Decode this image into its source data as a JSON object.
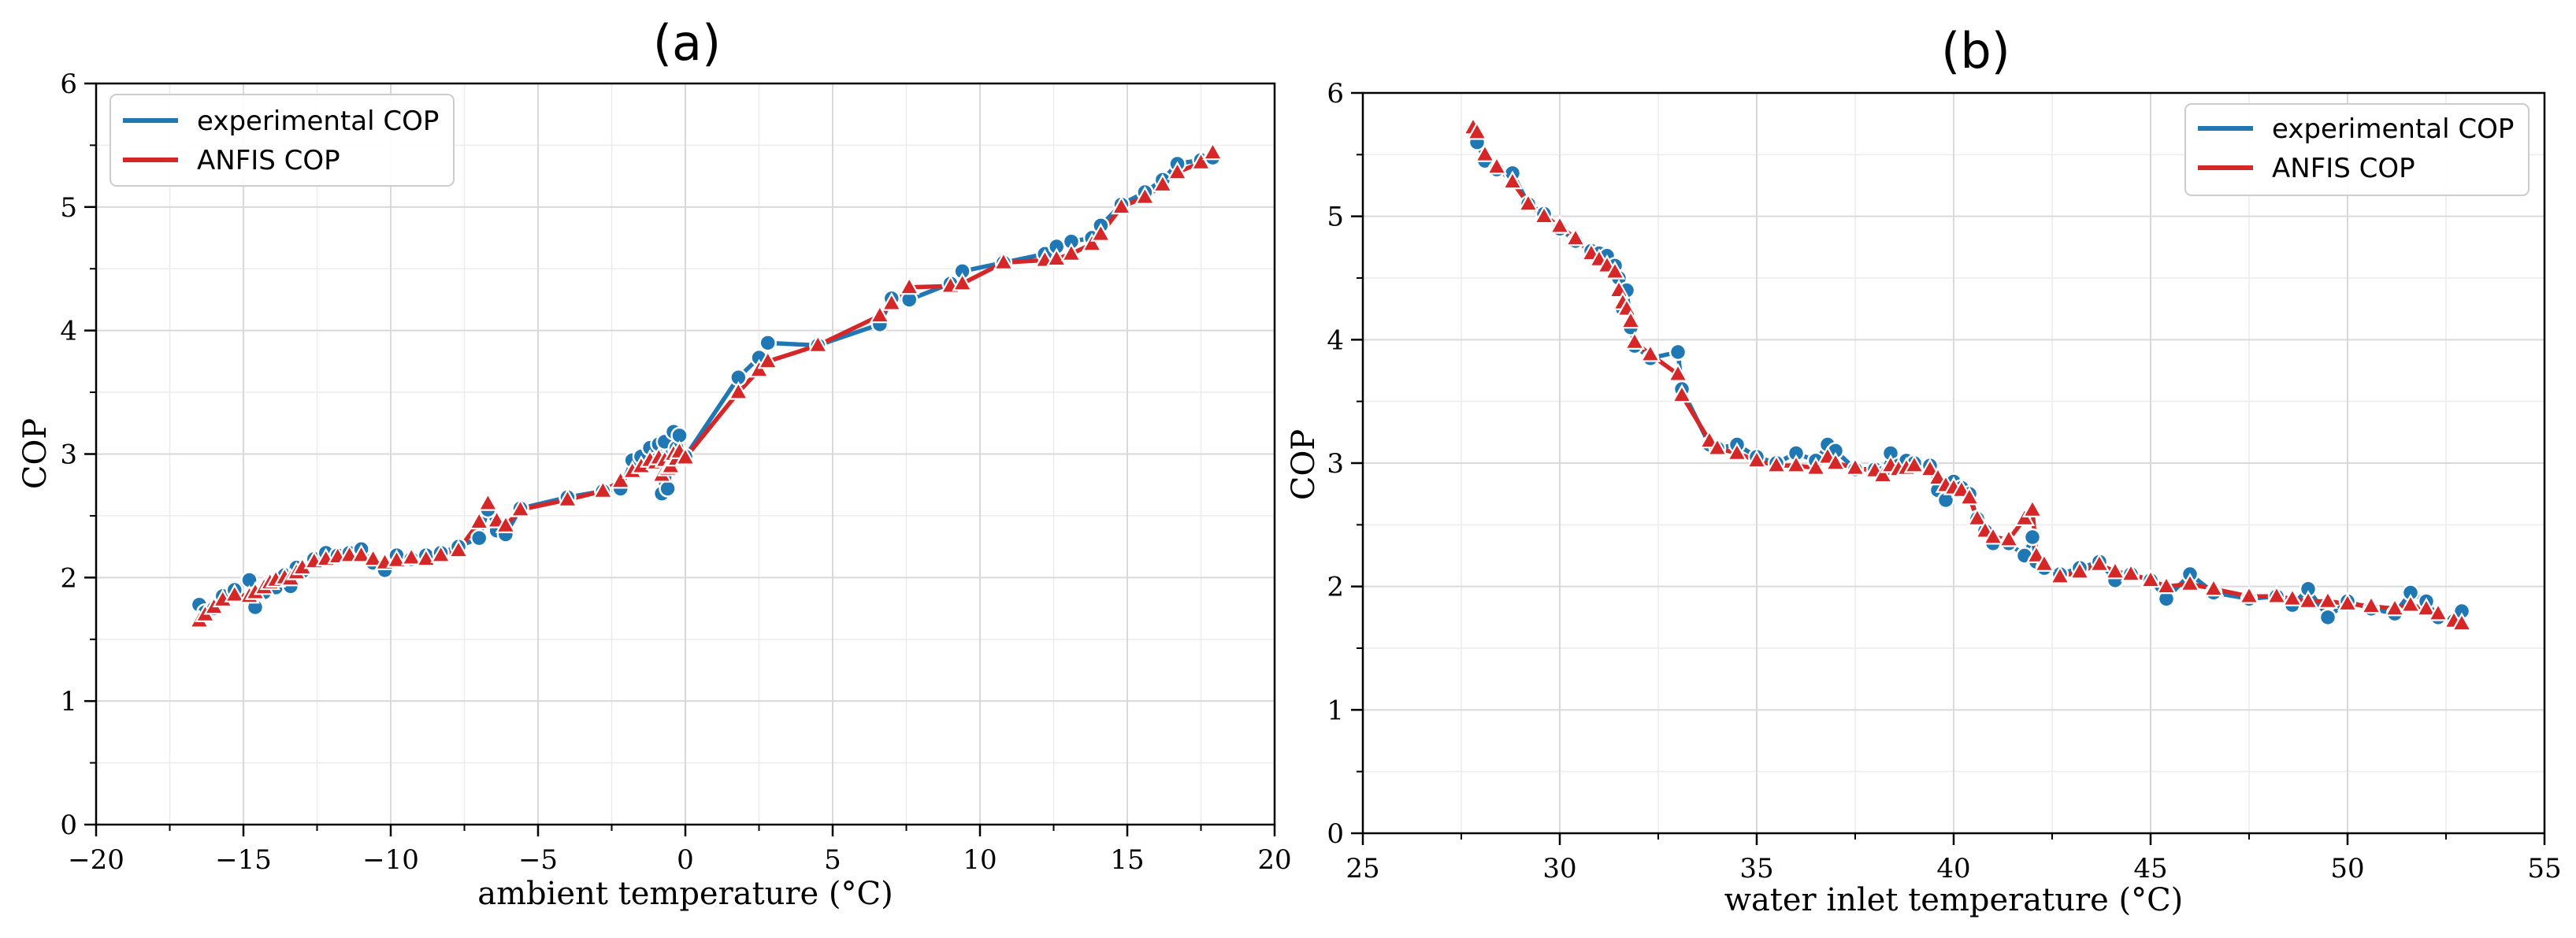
{
  "chart_data": [
    {
      "type": "line",
      "title": "(a)",
      "xlabel": "ambient temperature (°C)",
      "ylabel": "COP",
      "xlim": [
        -20,
        20
      ],
      "ylim": [
        0,
        6
      ],
      "xticks": [
        -20,
        -15,
        -10,
        -5,
        0,
        5,
        10,
        15,
        20
      ],
      "xtick_labels": [
        "−20",
        "−15",
        "−10",
        "−5",
        "0",
        "5",
        "10",
        "15",
        "20"
      ],
      "yticks": [
        0,
        1,
        2,
        3,
        4,
        5,
        6
      ],
      "ytick_labels": [
        "0",
        "1",
        "2",
        "3",
        "4",
        "5",
        "6"
      ],
      "x_minor_step": 2.5,
      "y_minor_step": 0.5,
      "grid": true,
      "legend_position": "top-left",
      "legend": [
        "experimental COP",
        "ANFIS COP"
      ],
      "x": [
        -16.5,
        -16.3,
        -16.0,
        -15.7,
        -15.3,
        -14.8,
        -14.6,
        -14.3,
        -14.1,
        -13.9,
        -13.6,
        -13.4,
        -13.2,
        -13.0,
        -12.6,
        -12.2,
        -11.8,
        -11.4,
        -11.0,
        -10.6,
        -10.2,
        -9.8,
        -9.3,
        -8.8,
        -8.3,
        -7.7,
        -7.0,
        -6.7,
        -6.4,
        -6.1,
        -5.6,
        -4.0,
        -2.8,
        -2.2,
        -1.8,
        -1.5,
        -1.2,
        -1.0,
        -0.9,
        -0.8,
        -0.7,
        -0.6,
        -0.5,
        -0.4,
        -0.3,
        -0.2,
        0.0,
        1.8,
        2.5,
        2.8,
        4.5,
        6.6,
        7.0,
        7.6,
        9.0,
        9.4,
        10.8,
        12.2,
        12.6,
        13.1,
        13.8,
        14.1,
        14.8,
        15.6,
        16.2,
        16.7,
        17.5,
        17.9
      ],
      "series": [
        {
          "name": "experimental COP",
          "color": "#1f77b4",
          "marker": "circle",
          "values": [
            1.78,
            1.72,
            1.75,
            1.85,
            1.9,
            1.98,
            1.76,
            1.88,
            1.95,
            1.92,
            2.02,
            1.93,
            2.08,
            2.05,
            2.15,
            2.2,
            2.18,
            2.2,
            2.23,
            2.12,
            2.06,
            2.18,
            2.15,
            2.18,
            2.2,
            2.25,
            2.32,
            2.55,
            2.38,
            2.35,
            2.56,
            2.65,
            2.7,
            2.72,
            2.95,
            2.98,
            3.05,
            2.95,
            3.08,
            2.68,
            3.1,
            2.72,
            2.9,
            3.18,
            3.05,
            3.15,
            2.98,
            3.62,
            3.78,
            3.9,
            3.88,
            4.05,
            4.26,
            4.25,
            4.38,
            4.48,
            4.55,
            4.62,
            4.68,
            4.72,
            4.75,
            4.85,
            5.02,
            5.12,
            5.22,
            5.35,
            5.38,
            5.4
          ]
        },
        {
          "name": "ANFIS COP",
          "color": "#d62728",
          "marker": "triangle",
          "values": [
            1.65,
            1.7,
            1.76,
            1.82,
            1.86,
            1.85,
            1.88,
            1.92,
            1.96,
            1.98,
            2.0,
            1.99,
            2.04,
            2.08,
            2.13,
            2.15,
            2.17,
            2.18,
            2.18,
            2.15,
            2.12,
            2.14,
            2.16,
            2.15,
            2.18,
            2.22,
            2.45,
            2.6,
            2.46,
            2.42,
            2.55,
            2.63,
            2.7,
            2.78,
            2.86,
            2.9,
            2.95,
            2.93,
            2.97,
            2.83,
            2.95,
            2.88,
            2.9,
            3.0,
            2.96,
            3.02,
            2.97,
            3.5,
            3.68,
            3.75,
            3.88,
            4.12,
            4.22,
            4.35,
            4.36,
            4.38,
            4.55,
            4.57,
            4.58,
            4.62,
            4.7,
            4.78,
            5.0,
            5.08,
            5.18,
            5.28,
            5.36,
            5.44
          ]
        }
      ]
    },
    {
      "type": "line",
      "title": "(b)",
      "xlabel": "water inlet temperature (°C)",
      "ylabel": "COP",
      "xlim": [
        25,
        55
      ],
      "ylim": [
        0,
        6
      ],
      "xticks": [
        25,
        30,
        35,
        40,
        45,
        50,
        55
      ],
      "xtick_labels": [
        "25",
        "30",
        "35",
        "40",
        "45",
        "50",
        "55"
      ],
      "yticks": [
        0,
        1,
        2,
        3,
        4,
        5,
        6
      ],
      "ytick_labels": [
        "0",
        "1",
        "2",
        "3",
        "4",
        "5",
        "6"
      ],
      "x_minor_step": 2.5,
      "y_minor_step": 0.5,
      "grid": true,
      "legend_position": "top-right",
      "legend": [
        "experimental COP",
        "ANFIS COP"
      ],
      "x": [
        27.8,
        27.9,
        28.1,
        28.4,
        28.8,
        29.2,
        29.6,
        30.0,
        30.4,
        30.8,
        31.0,
        31.2,
        31.4,
        31.5,
        31.6,
        31.7,
        31.8,
        31.9,
        32.3,
        33.0,
        33.1,
        33.8,
        34.0,
        34.5,
        35.0,
        35.5,
        36.0,
        36.5,
        36.8,
        37.0,
        37.5,
        38.0,
        38.2,
        38.4,
        38.6,
        38.8,
        39.0,
        39.4,
        39.6,
        39.8,
        40.0,
        40.2,
        40.4,
        40.6,
        40.8,
        41.0,
        41.4,
        41.8,
        42.0,
        42.1,
        42.3,
        42.7,
        43.2,
        43.7,
        44.1,
        44.5,
        45.0,
        45.4,
        46.0,
        46.6,
        47.5,
        48.2,
        48.6,
        49.0,
        49.5,
        50.0,
        50.6,
        51.2,
        51.6,
        52.0,
        52.3,
        52.7,
        52.9
      ],
      "series": [
        {
          "name": "experimental COP",
          "color": "#1f77b4",
          "marker": "circle",
          "values": [
            5.7,
            5.6,
            5.45,
            5.38,
            5.35,
            5.1,
            5.02,
            4.9,
            4.8,
            4.72,
            4.7,
            4.68,
            4.6,
            4.5,
            4.25,
            4.4,
            4.1,
            3.95,
            3.85,
            3.9,
            3.6,
            3.15,
            3.12,
            3.15,
            3.05,
            3.0,
            3.08,
            3.02,
            3.15,
            3.1,
            2.95,
            2.95,
            2.92,
            3.08,
            2.98,
            3.02,
            3.0,
            2.98,
            2.78,
            2.7,
            2.85,
            2.8,
            2.75,
            2.55,
            2.45,
            2.35,
            2.35,
            2.25,
            2.4,
            2.2,
            2.15,
            2.1,
            2.15,
            2.2,
            2.05,
            2.1,
            2.05,
            1.9,
            2.1,
            1.95,
            1.9,
            1.92,
            1.85,
            1.98,
            1.75,
            1.88,
            1.82,
            1.78,
            1.95,
            1.88,
            1.75,
            1.72,
            1.8
          ]
        },
        {
          "name": "ANFIS COP",
          "color": "#d62728",
          "marker": "triangle",
          "values": [
            5.72,
            5.68,
            5.5,
            5.4,
            5.28,
            5.1,
            5.0,
            4.92,
            4.82,
            4.7,
            4.65,
            4.6,
            4.55,
            4.4,
            4.3,
            4.25,
            4.15,
            3.98,
            3.88,
            3.72,
            3.55,
            3.18,
            3.12,
            3.08,
            3.02,
            2.98,
            2.98,
            2.96,
            3.05,
            3.0,
            2.96,
            2.94,
            2.9,
            2.98,
            2.95,
            2.96,
            2.98,
            2.95,
            2.88,
            2.82,
            2.8,
            2.78,
            2.72,
            2.55,
            2.45,
            2.4,
            2.38,
            2.55,
            2.62,
            2.25,
            2.18,
            2.08,
            2.12,
            2.18,
            2.12,
            2.1,
            2.05,
            2.0,
            2.02,
            1.98,
            1.92,
            1.92,
            1.9,
            1.88,
            1.88,
            1.86,
            1.84,
            1.82,
            1.85,
            1.82,
            1.78,
            1.72,
            1.7
          ]
        }
      ]
    }
  ]
}
